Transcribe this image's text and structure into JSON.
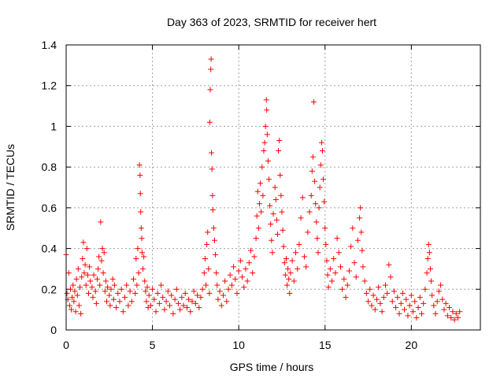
{
  "chart_data": {
    "type": "scatter",
    "title": "Day 363 of 2023, SRMTID for receiver hert",
    "xlabel": "GPS time / hours",
    "ylabel": "SRMTID / TECUs",
    "xlim": [
      0,
      24
    ],
    "ylim": [
      0,
      1.4
    ],
    "xticks": [
      0,
      5,
      10,
      15,
      20
    ],
    "xtick_labels": [
      "0",
      "5",
      "10",
      "15",
      "20"
    ],
    "yticks": [
      0,
      0.2,
      0.4,
      0.6,
      0.8,
      1.0,
      1.2,
      1.4
    ],
    "ytick_labels": [
      "0",
      "0.2",
      "0.4",
      "0.6",
      "0.8",
      "1",
      "1.2",
      "1.4"
    ],
    "grid": true,
    "marker": "plus",
    "series": [
      {
        "name": "SRMTID",
        "color": "#ff0000",
        "points": [
          [
            0.0,
            0.37
          ],
          [
            0.05,
            0.18
          ],
          [
            0.1,
            0.15
          ],
          [
            0.15,
            0.28
          ],
          [
            0.2,
            0.12
          ],
          [
            0.25,
            0.2
          ],
          [
            0.3,
            0.1
          ],
          [
            0.35,
            0.16
          ],
          [
            0.4,
            0.22
          ],
          [
            0.45,
            0.14
          ],
          [
            0.5,
            0.19
          ],
          [
            0.55,
            0.09
          ],
          [
            0.6,
            0.25
          ],
          [
            0.65,
            0.17
          ],
          [
            0.7,
            0.3
          ],
          [
            0.75,
            0.12
          ],
          [
            0.8,
            0.21
          ],
          [
            0.85,
            0.08
          ],
          [
            0.9,
            0.26
          ],
          [
            0.95,
            0.35
          ],
          [
            1.0,
            0.43
          ],
          [
            1.05,
            0.28
          ],
          [
            1.1,
            0.32
          ],
          [
            1.15,
            0.22
          ],
          [
            1.2,
            0.4
          ],
          [
            1.25,
            0.27
          ],
          [
            1.3,
            0.18
          ],
          [
            1.35,
            0.31
          ],
          [
            1.4,
            0.24
          ],
          [
            1.5,
            0.21
          ],
          [
            1.55,
            0.16
          ],
          [
            1.6,
            0.27
          ],
          [
            1.7,
            0.19
          ],
          [
            1.75,
            0.13
          ],
          [
            1.8,
            0.25
          ],
          [
            1.85,
            0.3
          ],
          [
            1.9,
            0.36
          ],
          [
            1.95,
            0.22
          ],
          [
            2.0,
            0.53
          ],
          [
            2.05,
            0.34
          ],
          [
            2.1,
            0.4
          ],
          [
            2.15,
            0.28
          ],
          [
            2.2,
            0.38
          ],
          [
            2.25,
            0.19
          ],
          [
            2.3,
            0.24
          ],
          [
            2.35,
            0.14
          ],
          [
            2.4,
            0.21
          ],
          [
            2.5,
            0.17
          ],
          [
            2.55,
            0.12
          ],
          [
            2.6,
            0.2
          ],
          [
            2.7,
            0.25
          ],
          [
            2.75,
            0.15
          ],
          [
            2.8,
            0.22
          ],
          [
            2.9,
            0.11
          ],
          [
            3.0,
            0.18
          ],
          [
            3.1,
            0.14
          ],
          [
            3.2,
            0.2
          ],
          [
            3.3,
            0.09
          ],
          [
            3.4,
            0.16
          ],
          [
            3.5,
            0.22
          ],
          [
            3.6,
            0.12
          ],
          [
            3.7,
            0.19
          ],
          [
            3.8,
            0.14
          ],
          [
            3.9,
            0.25
          ],
          [
            4.0,
            0.18
          ],
          [
            4.05,
            0.35
          ],
          [
            4.1,
            0.22
          ],
          [
            4.15,
            0.4
          ],
          [
            4.2,
            0.28
          ],
          [
            4.25,
            0.81
          ],
          [
            4.28,
            0.76
          ],
          [
            4.3,
            0.67
          ],
          [
            4.32,
            0.58
          ],
          [
            4.35,
            0.5
          ],
          [
            4.38,
            0.45
          ],
          [
            4.4,
            0.38
          ],
          [
            4.45,
            0.3
          ],
          [
            4.5,
            0.36
          ],
          [
            4.55,
            0.24
          ],
          [
            4.6,
            0.19
          ],
          [
            4.65,
            0.14
          ],
          [
            4.7,
            0.21
          ],
          [
            4.75,
            0.11
          ],
          [
            4.8,
            0.17
          ],
          [
            4.9,
            0.12
          ],
          [
            5.0,
            0.2
          ],
          [
            5.1,
            0.15
          ],
          [
            5.2,
            0.09
          ],
          [
            5.3,
            0.18
          ],
          [
            5.4,
            0.13
          ],
          [
            5.5,
            0.22
          ],
          [
            5.6,
            0.16
          ],
          [
            5.7,
            0.1
          ],
          [
            5.8,
            0.14
          ],
          [
            5.9,
            0.19
          ],
          [
            6.0,
            0.12
          ],
          [
            6.1,
            0.17
          ],
          [
            6.2,
            0.08
          ],
          [
            6.3,
            0.15
          ],
          [
            6.4,
            0.2
          ],
          [
            6.5,
            0.13
          ],
          [
            6.6,
            0.1
          ],
          [
            6.7,
            0.16
          ],
          [
            6.8,
            0.12
          ],
          [
            6.9,
            0.18
          ],
          [
            7.0,
            0.11
          ],
          [
            7.1,
            0.15
          ],
          [
            7.2,
            0.09
          ],
          [
            7.3,
            0.14
          ],
          [
            7.4,
            0.19
          ],
          [
            7.5,
            0.13
          ],
          [
            7.6,
            0.17
          ],
          [
            7.7,
            0.11
          ],
          [
            7.8,
            0.16
          ],
          [
            7.9,
            0.2
          ],
          [
            8.0,
            0.28
          ],
          [
            8.05,
            0.35
          ],
          [
            8.1,
            0.22
          ],
          [
            8.15,
            0.42
          ],
          [
            8.2,
            0.48
          ],
          [
            8.25,
            0.3
          ],
          [
            8.3,
            0.18
          ],
          [
            8.32,
            1.02
          ],
          [
            8.35,
            1.18
          ],
          [
            8.38,
            1.28
          ],
          [
            8.4,
            1.33
          ],
          [
            8.42,
            0.87
          ],
          [
            8.45,
            0.79
          ],
          [
            8.48,
            0.66
          ],
          [
            8.5,
            0.59
          ],
          [
            8.55,
            0.5
          ],
          [
            8.6,
            0.44
          ],
          [
            8.65,
            0.37
          ],
          [
            8.7,
            0.28
          ],
          [
            8.75,
            0.22
          ],
          [
            8.8,
            0.15
          ],
          [
            8.9,
            0.19
          ],
          [
            9.0,
            0.12
          ],
          [
            9.1,
            0.17
          ],
          [
            9.2,
            0.24
          ],
          [
            9.3,
            0.14
          ],
          [
            9.4,
            0.2
          ],
          [
            9.5,
            0.27
          ],
          [
            9.6,
            0.22
          ],
          [
            9.7,
            0.31
          ],
          [
            9.8,
            0.25
          ],
          [
            9.9,
            0.18
          ],
          [
            10.0,
            0.29
          ],
          [
            10.1,
            0.34
          ],
          [
            10.2,
            0.26
          ],
          [
            10.3,
            0.21
          ],
          [
            10.4,
            0.3
          ],
          [
            10.5,
            0.24
          ],
          [
            10.6,
            0.33
          ],
          [
            10.7,
            0.39
          ],
          [
            10.8,
            0.28
          ],
          [
            10.9,
            0.36
          ],
          [
            11.0,
            0.45
          ],
          [
            11.05,
            0.56
          ],
          [
            11.1,
            0.68
          ],
          [
            11.15,
            0.5
          ],
          [
            11.2,
            0.62
          ],
          [
            11.25,
            0.72
          ],
          [
            11.3,
            0.58
          ],
          [
            11.35,
            0.8
          ],
          [
            11.4,
            0.66
          ],
          [
            11.45,
            0.88
          ],
          [
            11.5,
            0.92
          ],
          [
            11.55,
            1.0
          ],
          [
            11.6,
            1.13
          ],
          [
            11.62,
            1.08
          ],
          [
            11.65,
            0.96
          ],
          [
            11.7,
            0.83
          ],
          [
            11.75,
            0.74
          ],
          [
            11.8,
            0.61
          ],
          [
            11.85,
            0.52
          ],
          [
            11.9,
            0.44
          ],
          [
            11.95,
            0.38
          ],
          [
            12.0,
            0.57
          ],
          [
            12.1,
            0.7
          ],
          [
            12.15,
            0.64
          ],
          [
            12.2,
            0.54
          ],
          [
            12.25,
            0.47
          ],
          [
            12.3,
            0.88
          ],
          [
            12.35,
            0.93
          ],
          [
            12.4,
            0.76
          ],
          [
            12.45,
            0.66
          ],
          [
            12.5,
            0.58
          ],
          [
            12.55,
            0.49
          ],
          [
            12.6,
            0.41
          ],
          [
            12.65,
            0.33
          ],
          [
            12.7,
            0.27
          ],
          [
            12.75,
            0.35
          ],
          [
            12.8,
            0.22
          ],
          [
            12.85,
            0.3
          ],
          [
            12.9,
            0.25
          ],
          [
            12.95,
            0.18
          ],
          [
            13.0,
            0.28
          ],
          [
            13.1,
            0.34
          ],
          [
            13.2,
            0.24
          ],
          [
            13.3,
            0.38
          ],
          [
            13.4,
            0.3
          ],
          [
            13.5,
            0.42
          ],
          [
            13.6,
            0.55
          ],
          [
            13.7,
            0.65
          ],
          [
            13.8,
            0.36
          ],
          [
            13.9,
            0.31
          ],
          [
            14.0,
            0.48
          ],
          [
            14.1,
            0.58
          ],
          [
            14.2,
            0.66
          ],
          [
            14.25,
            0.78
          ],
          [
            14.3,
            0.85
          ],
          [
            14.35,
            1.12
          ],
          [
            14.4,
            0.73
          ],
          [
            14.45,
            0.62
          ],
          [
            14.5,
            0.53
          ],
          [
            14.55,
            0.45
          ],
          [
            14.6,
            0.38
          ],
          [
            14.65,
            0.6
          ],
          [
            14.7,
            0.7
          ],
          [
            14.75,
            0.81
          ],
          [
            14.8,
            0.92
          ],
          [
            14.85,
            0.88
          ],
          [
            14.9,
            0.74
          ],
          [
            14.95,
            0.63
          ],
          [
            15.0,
            0.5
          ],
          [
            15.05,
            0.42
          ],
          [
            15.1,
            0.34
          ],
          [
            15.15,
            0.27
          ],
          [
            15.2,
            0.21
          ],
          [
            15.3,
            0.3
          ],
          [
            15.4,
            0.24
          ],
          [
            15.5,
            0.35
          ],
          [
            15.6,
            0.28
          ],
          [
            15.7,
            0.45
          ],
          [
            15.8,
            0.38
          ],
          [
            15.9,
            0.31
          ],
          [
            16.0,
            0.2
          ],
          [
            16.1,
            0.25
          ],
          [
            16.2,
            0.16
          ],
          [
            16.3,
            0.22
          ],
          [
            16.4,
            0.29
          ],
          [
            16.5,
            0.41
          ],
          [
            16.6,
            0.5
          ],
          [
            16.7,
            0.33
          ],
          [
            16.8,
            0.26
          ],
          [
            16.9,
            0.44
          ],
          [
            17.0,
            0.55
          ],
          [
            17.05,
            0.6
          ],
          [
            17.1,
            0.48
          ],
          [
            17.15,
            0.39
          ],
          [
            17.2,
            0.31
          ],
          [
            17.3,
            0.24
          ],
          [
            17.4,
            0.18
          ],
          [
            17.5,
            0.14
          ],
          [
            17.6,
            0.2
          ],
          [
            17.7,
            0.12
          ],
          [
            17.8,
            0.17
          ],
          [
            17.9,
            0.1
          ],
          [
            18.0,
            0.15
          ],
          [
            18.1,
            0.21
          ],
          [
            18.2,
            0.13
          ],
          [
            18.3,
            0.09
          ],
          [
            18.4,
            0.16
          ],
          [
            18.5,
            0.22
          ],
          [
            18.6,
            0.18
          ],
          [
            18.7,
            0.32
          ],
          [
            18.8,
            0.26
          ],
          [
            18.9,
            0.14
          ],
          [
            19.0,
            0.19
          ],
          [
            19.1,
            0.11
          ],
          [
            19.2,
            0.16
          ],
          [
            19.3,
            0.08
          ],
          [
            19.4,
            0.13
          ],
          [
            19.5,
            0.18
          ],
          [
            19.6,
            0.1
          ],
          [
            19.7,
            0.15
          ],
          [
            19.8,
            0.07
          ],
          [
            19.9,
            0.12
          ],
          [
            20.0,
            0.17
          ],
          [
            20.1,
            0.09
          ],
          [
            20.2,
            0.14
          ],
          [
            20.3,
            0.06
          ],
          [
            20.4,
            0.11
          ],
          [
            20.5,
            0.16
          ],
          [
            20.6,
            0.08
          ],
          [
            20.7,
            0.13
          ],
          [
            20.8,
            0.2
          ],
          [
            20.9,
            0.28
          ],
          [
            20.95,
            0.35
          ],
          [
            21.0,
            0.42
          ],
          [
            21.05,
            0.38
          ],
          [
            21.1,
            0.3
          ],
          [
            21.15,
            0.24
          ],
          [
            21.2,
            0.17
          ],
          [
            21.3,
            0.12
          ],
          [
            21.4,
            0.08
          ],
          [
            21.5,
            0.14
          ],
          [
            21.6,
            0.19
          ],
          [
            21.7,
            0.22
          ],
          [
            21.8,
            0.15
          ],
          [
            21.9,
            0.1
          ],
          [
            22.0,
            0.13
          ],
          [
            22.1,
            0.07
          ],
          [
            22.2,
            0.11
          ],
          [
            22.3,
            0.06
          ],
          [
            22.4,
            0.09
          ],
          [
            22.5,
            0.05
          ],
          [
            22.6,
            0.08
          ],
          [
            22.7,
            0.06
          ],
          [
            22.8,
            0.09
          ]
        ]
      }
    ]
  }
}
